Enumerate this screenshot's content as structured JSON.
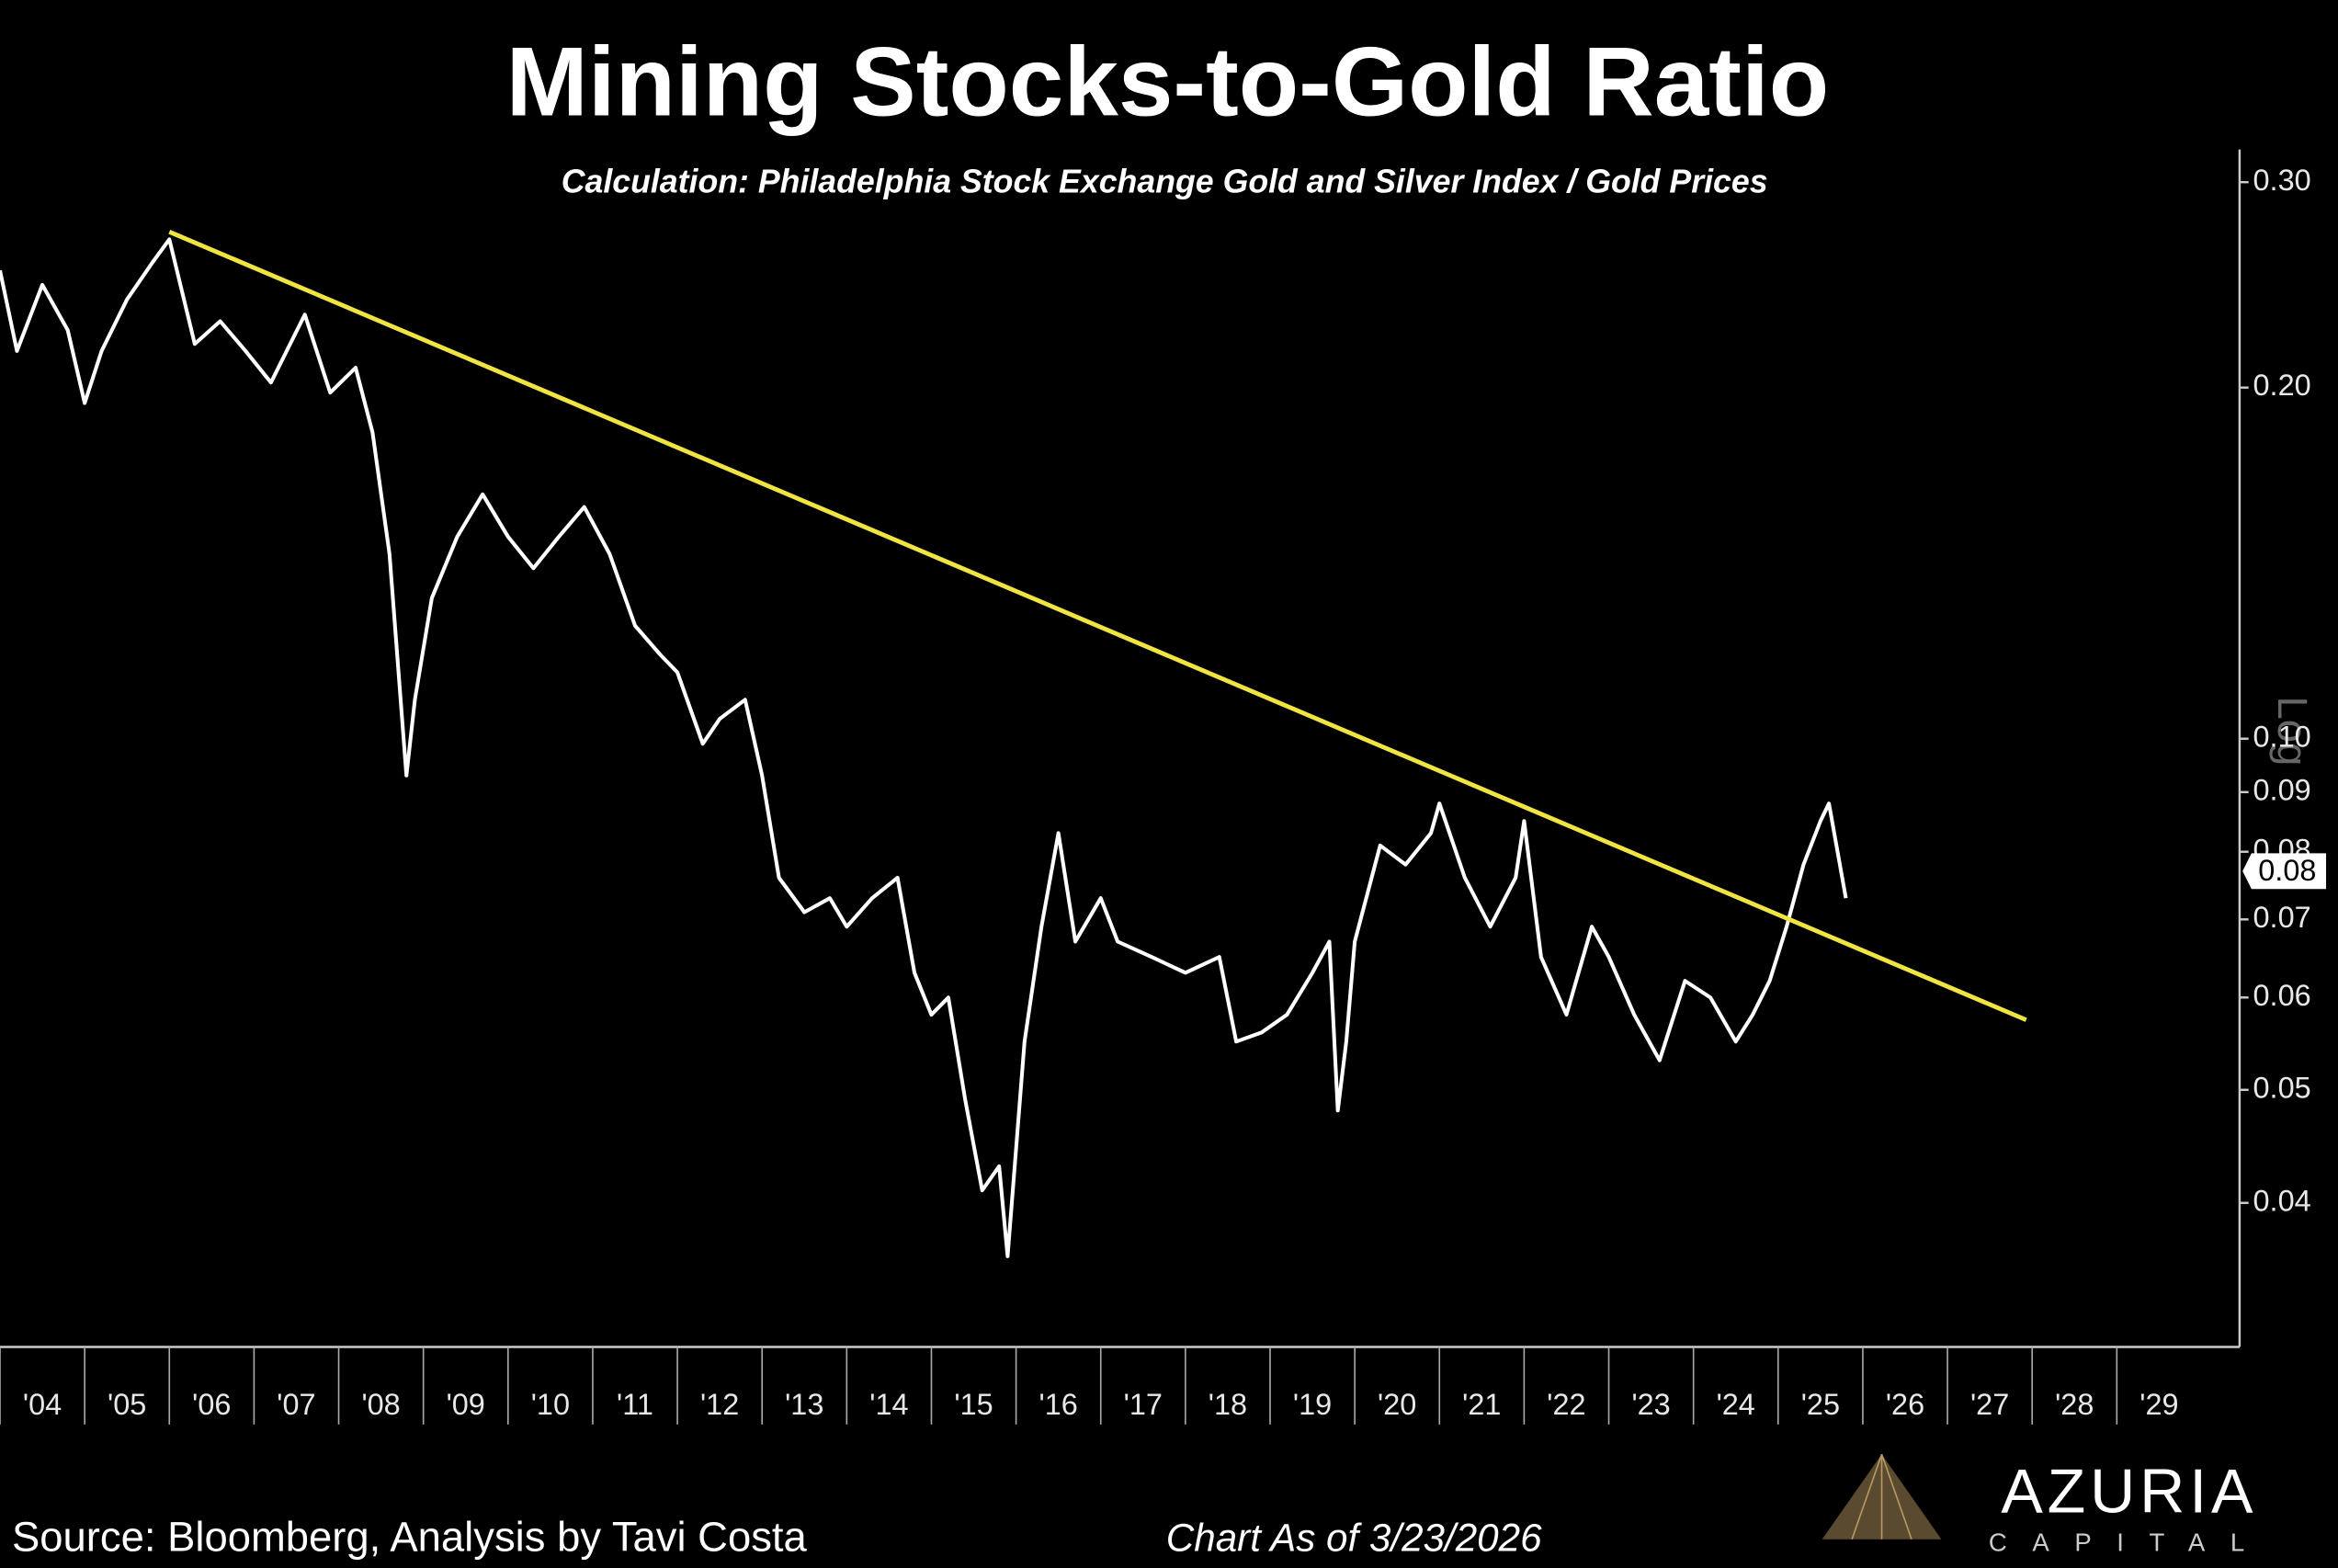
{
  "chart_data": {
    "type": "line",
    "title": "Mining Stocks-to-Gold Ratio",
    "subtitle": "Calculation: Philadelphia Stock Exchange Gold and Silver Index / Gold Prices",
    "source": "Source: Bloomberg, Analysis by Tavi Costa",
    "date_note": "Chart As of 3/23/2026",
    "brand": "AZURIA",
    "brand_sub": "CAPITAL",
    "scale": "log",
    "scale_label": "Log",
    "xlim": [
      2004,
      2030.45
    ],
    "ylim": [
      0.0301,
      0.32
    ],
    "xticks": [
      {
        "value": 2004,
        "label": "'04"
      },
      {
        "value": 2005,
        "label": "'05"
      },
      {
        "value": 2006,
        "label": "'06"
      },
      {
        "value": 2007,
        "label": "'07"
      },
      {
        "value": 2008,
        "label": "'08"
      },
      {
        "value": 2009,
        "label": "'09"
      },
      {
        "value": 2010,
        "label": "'10"
      },
      {
        "value": 2011,
        "label": "'11"
      },
      {
        "value": 2012,
        "label": "'12"
      },
      {
        "value": 2013,
        "label": "'13"
      },
      {
        "value": 2014,
        "label": "'14"
      },
      {
        "value": 2015,
        "label": "'15"
      },
      {
        "value": 2016,
        "label": "'16"
      },
      {
        "value": 2017,
        "label": "'17"
      },
      {
        "value": 2018,
        "label": "'18"
      },
      {
        "value": 2019,
        "label": "'19"
      },
      {
        "value": 2020,
        "label": "'20"
      },
      {
        "value": 2021,
        "label": "'21"
      },
      {
        "value": 2022,
        "label": "'22"
      },
      {
        "value": 2023,
        "label": "'23"
      },
      {
        "value": 2024,
        "label": "'24"
      },
      {
        "value": 2025,
        "label": "'25"
      },
      {
        "value": 2026,
        "label": "'26"
      },
      {
        "value": 2027,
        "label": "'27"
      },
      {
        "value": 2028,
        "label": "'28"
      },
      {
        "value": 2029,
        "label": "'29"
      }
    ],
    "yticks": [
      0.04,
      0.05,
      0.06,
      0.07,
      0.08,
      0.09,
      {
        "value": 0.1,
        "label": "0.10"
      },
      {
        "value": 0.2,
        "label": "0.20"
      },
      {
        "value": 0.3,
        "label": "0.30"
      }
    ],
    "series": [
      {
        "color": "#ffffff",
        "x": [
          2004.0,
          2004.2,
          2004.5,
          2004.8,
          2005.0,
          2005.2,
          2005.5,
          2005.8,
          2006.0,
          2006.3,
          2006.6,
          2006.9,
          2007.2,
          2007.6,
          2007.9,
          2008.2,
          2008.4,
          2008.6,
          2008.8,
          2008.9,
          2009.1,
          2009.4,
          2009.7,
          2010.0,
          2010.3,
          2010.6,
          2010.9,
          2011.2,
          2011.5,
          2011.8,
          2012.0,
          2012.3,
          2012.5,
          2012.8,
          2013.0,
          2013.2,
          2013.5,
          2013.8,
          2014.0,
          2014.3,
          2014.6,
          2014.8,
          2015.0,
          2015.2,
          2015.4,
          2015.6,
          2015.8,
          2015.9,
          2016.1,
          2016.3,
          2016.5,
          2016.7,
          2017.0,
          2017.2,
          2017.6,
          2018.0,
          2018.4,
          2018.6,
          2018.9,
          2019.2,
          2019.5,
          2019.7,
          2019.8,
          2019.9,
          2020.0,
          2020.3,
          2020.6,
          2020.9,
          2021.0,
          2021.3,
          2021.6,
          2021.9,
          2022.0,
          2022.2,
          2022.5,
          2022.8,
          2023.0,
          2023.3,
          2023.6,
          2023.9,
          2024.2,
          2024.5,
          2024.7,
          2024.9,
          2025.1,
          2025.3,
          2025.5,
          2025.6,
          2025.8
        ],
        "values": [
          0.252,
          0.215,
          0.245,
          0.224,
          0.194,
          0.215,
          0.238,
          0.256,
          0.268,
          0.218,
          0.228,
          0.215,
          0.202,
          0.231,
          0.198,
          0.208,
          0.183,
          0.144,
          0.093,
          0.108,
          0.132,
          0.149,
          0.162,
          0.149,
          0.14,
          0.149,
          0.158,
          0.144,
          0.125,
          0.118,
          0.114,
          0.099,
          0.104,
          0.108,
          0.093,
          0.076,
          0.071,
          0.073,
          0.069,
          0.073,
          0.076,
          0.063,
          0.058,
          0.06,
          0.049,
          0.041,
          0.043,
          0.036,
          0.055,
          0.069,
          0.083,
          0.067,
          0.073,
          0.067,
          0.065,
          0.063,
          0.065,
          0.055,
          0.056,
          0.058,
          0.063,
          0.067,
          0.048,
          0.055,
          0.067,
          0.081,
          0.078,
          0.083,
          0.088,
          0.076,
          0.069,
          0.076,
          0.085,
          0.065,
          0.058,
          0.069,
          0.065,
          0.058,
          0.053,
          0.062,
          0.06,
          0.055,
          0.058,
          0.062,
          0.069,
          0.078,
          0.085,
          0.088,
          0.073
        ]
      }
    ],
    "trendline": {
      "color": "#f0e442",
      "x": [
        2006.0,
        2027.93
      ],
      "values": [
        0.272,
        0.0574
      ]
    },
    "last_value": 0.077,
    "last_value_label": "0.08"
  }
}
